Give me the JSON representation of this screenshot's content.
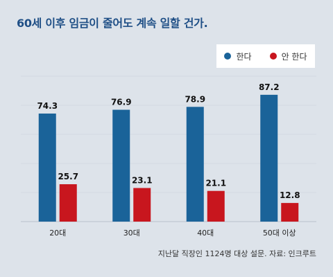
{
  "title": "60세 이후 임금이 줄어도 계속 일할 건가.",
  "source": "지난달 직장인 1124명 대상 설문. 자료: 인크루트",
  "colors": {
    "series1": "#1a6399",
    "series2": "#c8161e",
    "title": "#1f4f86",
    "background": "#dde3ea"
  },
  "chart_data": {
    "type": "bar",
    "title": "60세 이후 임금이 줄어도 계속 일할 건가.",
    "categories": [
      "20대",
      "30대",
      "40대",
      "50대 이상"
    ],
    "series": [
      {
        "name": "한다",
        "values": [
          74.3,
          76.9,
          78.9,
          87.2
        ]
      },
      {
        "name": "안 한다",
        "values": [
          25.7,
          23.1,
          21.1,
          12.8
        ]
      }
    ],
    "ylim": [
      0,
      100
    ],
    "grid": true,
    "legend": "top-right"
  }
}
